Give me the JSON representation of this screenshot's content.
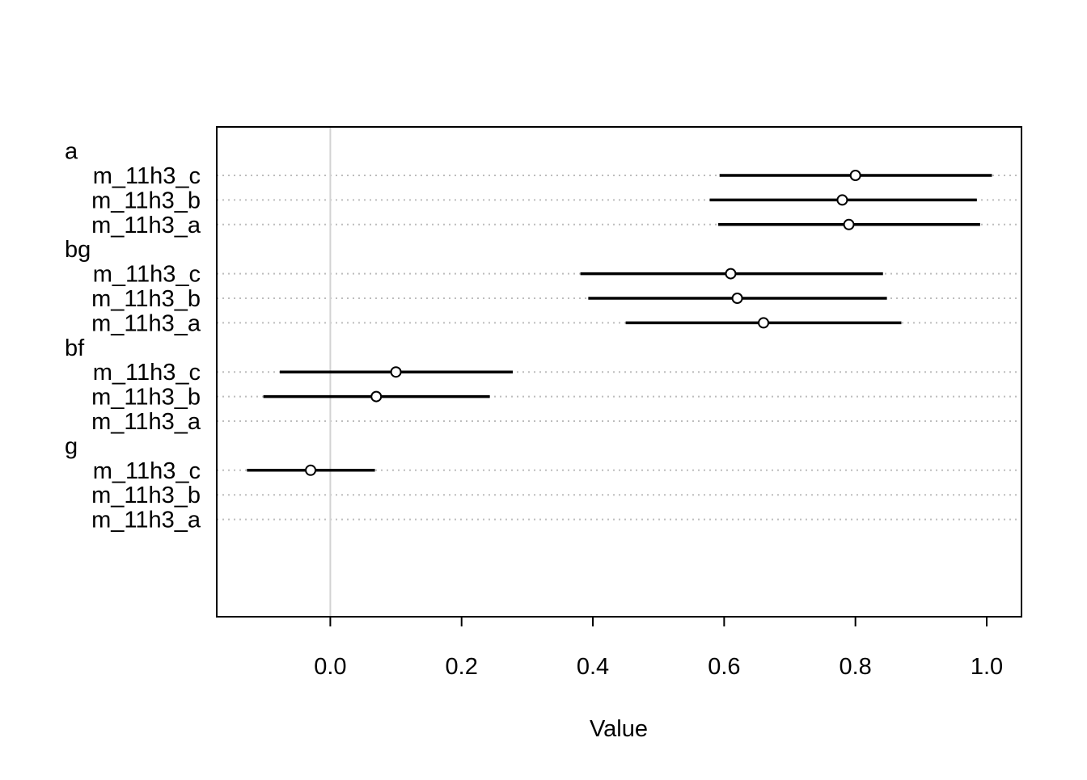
{
  "chart_data": {
    "type": "dotplot-interval",
    "title": "",
    "xlabel": "Value",
    "ylabel": "",
    "xlim": [
      -0.173,
      1.053
    ],
    "x_ticks": [
      0.0,
      0.2,
      0.4,
      0.6,
      0.8,
      1.0
    ],
    "x_tick_labels": [
      "0.0",
      "0.2",
      "0.4",
      "0.6",
      "0.8",
      "1.0"
    ],
    "reference_line": 0.0,
    "grid": "dotted horizontal row lines",
    "groups": [
      {
        "label": "a",
        "rows": [
          {
            "label": "m_11h3_c",
            "estimate": 0.8,
            "lower": 0.593,
            "upper": 1.008
          },
          {
            "label": "m_11h3_b",
            "estimate": 0.78,
            "lower": 0.578,
            "upper": 0.985
          },
          {
            "label": "m_11h3_a",
            "estimate": 0.79,
            "lower": 0.591,
            "upper": 0.99
          }
        ]
      },
      {
        "label": "bg",
        "rows": [
          {
            "label": "m_11h3_c",
            "estimate": 0.61,
            "lower": 0.381,
            "upper": 0.842
          },
          {
            "label": "m_11h3_b",
            "estimate": 0.62,
            "lower": 0.393,
            "upper": 0.848
          },
          {
            "label": "m_11h3_a",
            "estimate": 0.66,
            "lower": 0.45,
            "upper": 0.87
          }
        ]
      },
      {
        "label": "bf",
        "rows": [
          {
            "label": "m_11h3_c",
            "estimate": 0.1,
            "lower": -0.077,
            "upper": 0.278
          },
          {
            "label": "m_11h3_b",
            "estimate": 0.07,
            "lower": -0.102,
            "upper": 0.243
          },
          {
            "label": "m_11h3_a",
            "estimate": null,
            "lower": null,
            "upper": null
          }
        ]
      },
      {
        "label": "g",
        "rows": [
          {
            "label": "m_11h3_c",
            "estimate": -0.03,
            "lower": -0.127,
            "upper": 0.068
          },
          {
            "label": "m_11h3_b",
            "estimate": null,
            "lower": null,
            "upper": null
          },
          {
            "label": "m_11h3_a",
            "estimate": null,
            "lower": null,
            "upper": null
          }
        ]
      }
    ]
  }
}
